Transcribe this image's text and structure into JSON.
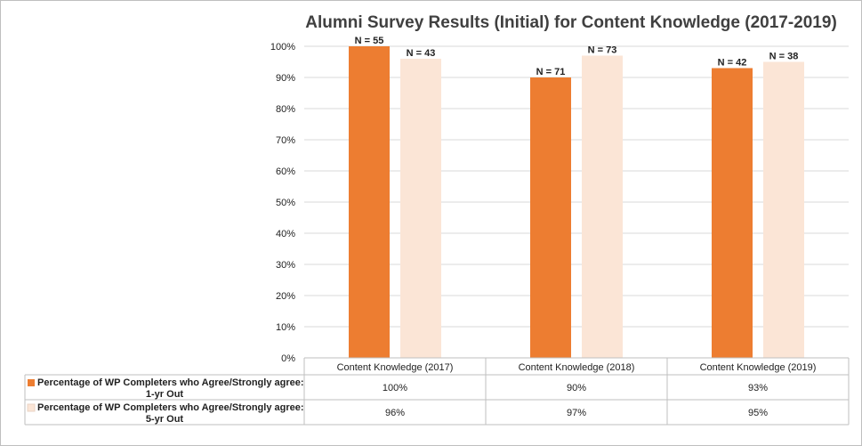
{
  "chart_data": {
    "type": "bar",
    "title": "Alumni Survey Results (Initial) for Content Knowledge (2017-2019)",
    "categories": [
      "Content Knowledge (2017)",
      "Content Knowledge  (2018)",
      "Content Knowledge  (2019)"
    ],
    "series": [
      {
        "name_lines": [
          "Percentage of WP Completers who Agree/Strongly agree:",
          "1-yr Out"
        ],
        "values": [
          100,
          90,
          93
        ],
        "value_labels": [
          "100%",
          "90%",
          "93%"
        ],
        "n_labels": [
          "N = 55",
          "N = 71",
          "N = 42"
        ],
        "color": "#ed7d31"
      },
      {
        "name_lines": [
          "Percentage of WP Completers who Agree/Strongly agree:",
          "5-yr Out"
        ],
        "values": [
          96,
          97,
          95
        ],
        "value_labels": [
          "96%",
          "97%",
          "95%"
        ],
        "n_labels": [
          "N = 43",
          "N = 73",
          "N = 38"
        ],
        "color": "#fbe5d6"
      }
    ],
    "ylim": [
      0,
      100
    ],
    "yticks": [
      0,
      10,
      20,
      30,
      40,
      50,
      60,
      70,
      80,
      90,
      100
    ],
    "ytick_labels": [
      "0%",
      "10%",
      "20%",
      "30%",
      "40%",
      "50%",
      "60%",
      "70%",
      "80%",
      "90%",
      "100%"
    ],
    "grid": true,
    "legend": "data-table"
  }
}
